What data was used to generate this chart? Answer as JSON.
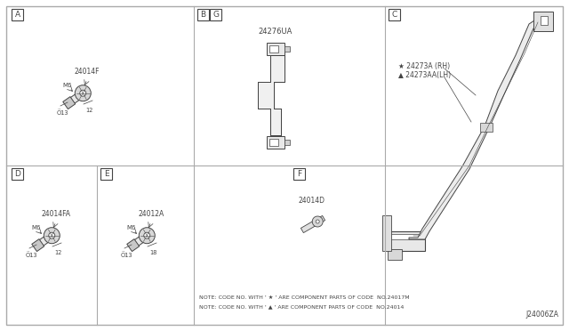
{
  "bg_color": "#ffffff",
  "grid_color": "#aaaaaa",
  "part_color": "#444444",
  "diagram_id": "J24006ZA",
  "notes": [
    "NOTE: CODE NO. WITH ' ★ ' ARE COMPONENT PARTS OF CODE  NO.24017M",
    "NOTE: CODE NO. WITH ' ▲ ' ARE COMPONENT PARTS OF CODE  NO.24014"
  ],
  "parts": {
    "A_bolt": {
      "part_no": "24014F",
      "m6": "M6",
      "d1": "Ö13",
      "d2": "12"
    },
    "BG_clip": {
      "part_no": "24276UA"
    },
    "C_rh": {
      "part_no": "≂24273A (RH)"
    },
    "C_lh": {
      "part_no": "≂24273AA(LH)"
    },
    "D_bolt": {
      "part_no": "24014FA",
      "m6": "M6",
      "d1": "Ö13",
      "d2": "12"
    },
    "E_bolt": {
      "part_no": "24012A",
      "m6": "M6",
      "d1": "Ö13",
      "d2": "18"
    },
    "F_bolt": {
      "part_no": "24014D"
    }
  }
}
